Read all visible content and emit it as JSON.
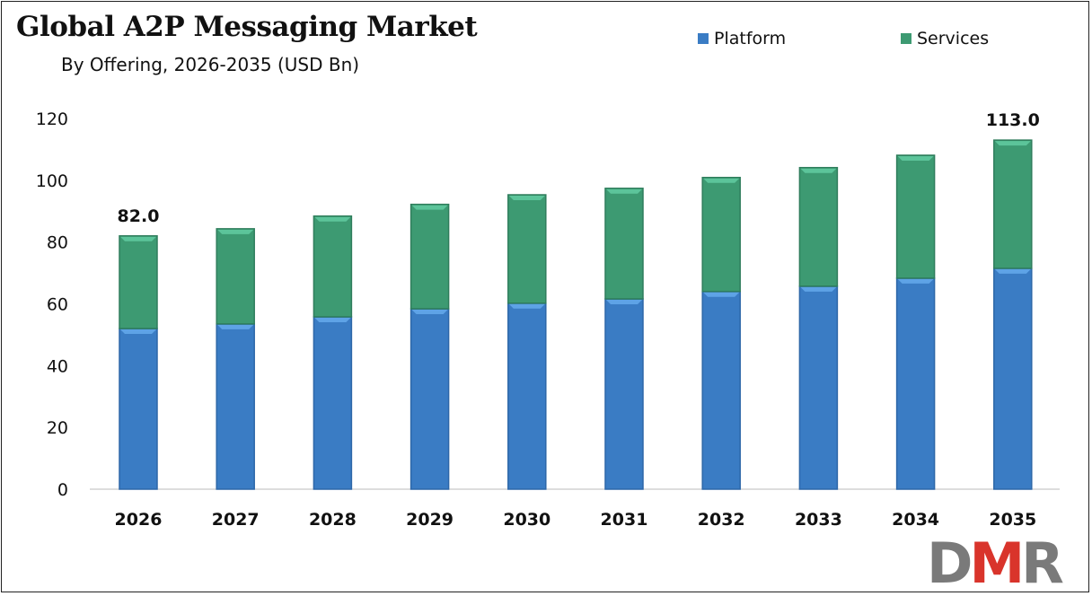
{
  "chart_data": {
    "type": "bar",
    "stacked": true,
    "title": "Global A2P Messaging Market",
    "subtitle": "By Offering, 2026-2035 (USD Bn)",
    "categories": [
      "2026",
      "2027",
      "2028",
      "2029",
      "2030",
      "2031",
      "2032",
      "2033",
      "2034",
      "2035"
    ],
    "series": [
      {
        "name": "Platform",
        "color": "#3a7cc4",
        "values": [
          52.0,
          53.5,
          55.8,
          58.4,
          60.2,
          61.6,
          64.0,
          65.7,
          68.3,
          71.5
        ]
      },
      {
        "name": "Services",
        "color": "#3d9a72",
        "values": [
          30.0,
          30.8,
          32.6,
          33.8,
          35.1,
          35.8,
          36.9,
          38.4,
          39.8,
          41.5
        ]
      }
    ],
    "data_labels": [
      {
        "category": "2026",
        "text": "82.0"
      },
      {
        "category": "2035",
        "text": "113.0"
      }
    ],
    "ylim": [
      0,
      120
    ],
    "yticks": [
      0,
      20,
      40,
      60,
      80,
      100,
      120
    ],
    "grid": false,
    "legend": "top-right",
    "xlabel": "",
    "ylabel": ""
  },
  "logo": {
    "text": "DMR",
    "colors": [
      "#7a7a7a",
      "#d9342b",
      "#7a7a7a"
    ]
  }
}
